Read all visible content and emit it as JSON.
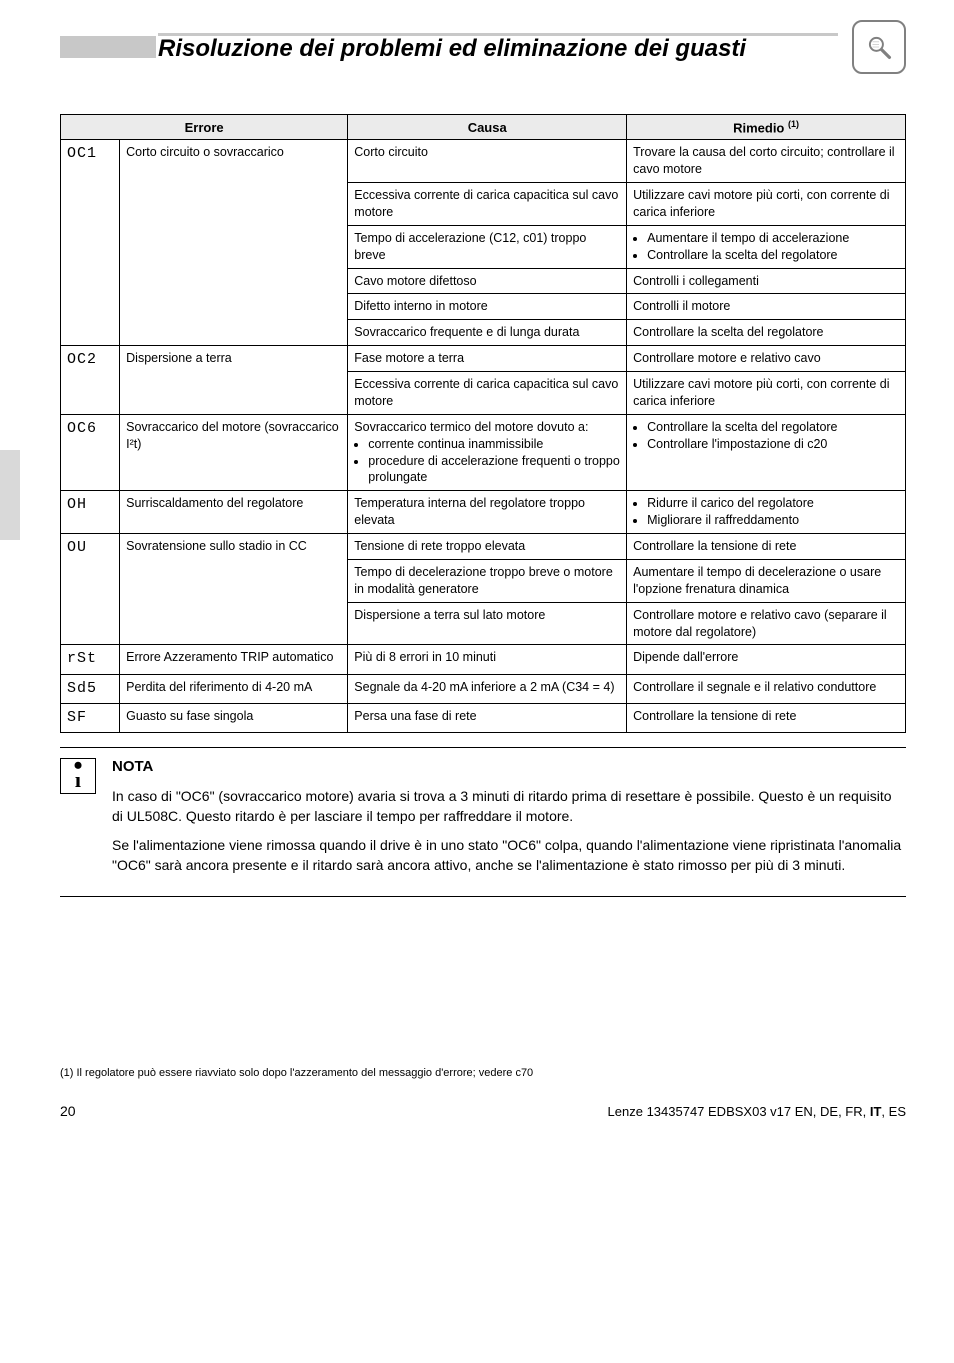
{
  "header": {
    "title": "Risoluzione dei problemi ed eliminazione dei guasti",
    "icon_name": "magnifier-icon"
  },
  "colors": {
    "header_grey": "#c8c8c8",
    "table_header_bg": "#ebebeb",
    "border": "#000000",
    "margin_tab": "#d9d9d9",
    "icon_border": "#808080"
  },
  "table": {
    "headers": {
      "error": "Errore",
      "cause": "Causa",
      "remedy": "Rimedio",
      "remedy_sup": "(1)"
    },
    "groups": [
      {
        "code": "OC1",
        "label": "Corto circuito o sovraccarico",
        "rows": [
          {
            "cause": "Corto circuito",
            "remedy": "Trovare la causa del corto circuito; controllare il cavo motore"
          },
          {
            "cause": "Eccessiva corrente di carica capacitica sul cavo motore",
            "remedy": "Utilizzare cavi motore più corti, con corrente di carica inferiore"
          },
          {
            "cause": "Tempo di accelerazione (C12, c01) troppo breve",
            "remedy_bullets": [
              "Aumentare il tempo di accelerazione",
              "Controllare la scelta del regolatore"
            ]
          },
          {
            "cause": "Cavo motore difettoso",
            "remedy": "Controlli i collegamenti"
          },
          {
            "cause": "Difetto interno in motore",
            "remedy": "Controlli il motore"
          },
          {
            "cause": "Sovraccarico frequente e di lunga durata",
            "remedy": "Controllare la scelta del regolatore"
          }
        ]
      },
      {
        "code": "OC2",
        "label": "Dispersione a terra",
        "rows": [
          {
            "cause": "Fase motore a terra",
            "remedy": "Controllare motore e relativo cavo"
          },
          {
            "cause": "Eccessiva corrente di carica capacitica sul cavo motore",
            "remedy": "Utilizzare cavi motore più corti, con corrente di carica inferiore"
          }
        ]
      },
      {
        "code": "OC6",
        "label": "Sovraccarico del motore (sovraccarico I²t)",
        "rows": [
          {
            "cause_lines": [
              "Sovraccarico termico del motore dovuto a:"
            ],
            "cause_bullets": [
              "corrente continua inammissibile",
              "procedure di accelerazione frequenti o troppo prolungate"
            ],
            "remedy_bullets": [
              "Controllare la scelta del regolatore",
              "Controllare l'impostazione di c20"
            ]
          }
        ]
      },
      {
        "code": "OH",
        "label": "Surriscaldamento del regolatore",
        "rows": [
          {
            "cause": "Temperatura interna del regolatore troppo elevata",
            "remedy_bullets": [
              "Ridurre il carico del regolatore",
              "Migliorare il raffreddamento"
            ]
          }
        ]
      },
      {
        "code": "OU",
        "label": "Sovratensione sullo stadio in CC",
        "rows": [
          {
            "cause": "Tensione di rete troppo elevata",
            "remedy": "Controllare la tensione di rete"
          },
          {
            "cause": "Tempo di decelerazione troppo breve o motore in modalità generatore",
            "remedy": "Aumentare il tempo di decelerazione o usare l'opzione frenatura dinamica"
          },
          {
            "cause": "Dispersione a terra sul lato motore",
            "remedy": "Controllare motore e relativo cavo (separare il motore dal regolatore)"
          }
        ]
      },
      {
        "code": "rSt",
        "label": "Errore Azzeramento TRIP automatico",
        "rows": [
          {
            "cause": "Più di 8 errori in 10 minuti",
            "remedy": "Dipende dall'errore"
          }
        ]
      },
      {
        "code": "Sd5",
        "label": "Perdita del riferimento di 4-20 mA",
        "rows": [
          {
            "cause": "Segnale da 4-20 mA inferiore a 2 mA (C34 = 4)",
            "remedy": "Controllare il segnale e il relativo conduttore"
          }
        ]
      },
      {
        "code": "SF",
        "label": "Guasto su fase singola",
        "rows": [
          {
            "cause": "Persa una fase di rete",
            "remedy": "Controllare la tensione di rete"
          }
        ]
      }
    ]
  },
  "note": {
    "title": "NOTA",
    "paragraphs": [
      "In caso di \"OC6\" (sovraccarico motore) avaria si trova a 3 minuti di ritardo prima di resettare è possibile. Questo è un requisito di UL508C. Questo ritardo è per lasciare il tempo per raffreddare il motore.",
      "Se l'alimentazione viene rimossa quando il drive è in uno stato \"OC6\" colpa, quando l'alimentazione viene ripristinata l'anomalia \"OC6\" sarà ancora presente e il ritardo sarà ancora attivo, anche se l'alimentazione è stato rimosso per più di 3 minuti."
    ]
  },
  "footnote": "(1)  Il regolatore può essere riavviato solo dopo l'azzeramento del messaggio d'errore; vedere c70",
  "footer": {
    "page": "20",
    "doc_prefix": "Lenze 13435747  EDBSX03  v17  EN, DE, FR, ",
    "doc_bold": "IT",
    "doc_suffix": ", ES"
  }
}
